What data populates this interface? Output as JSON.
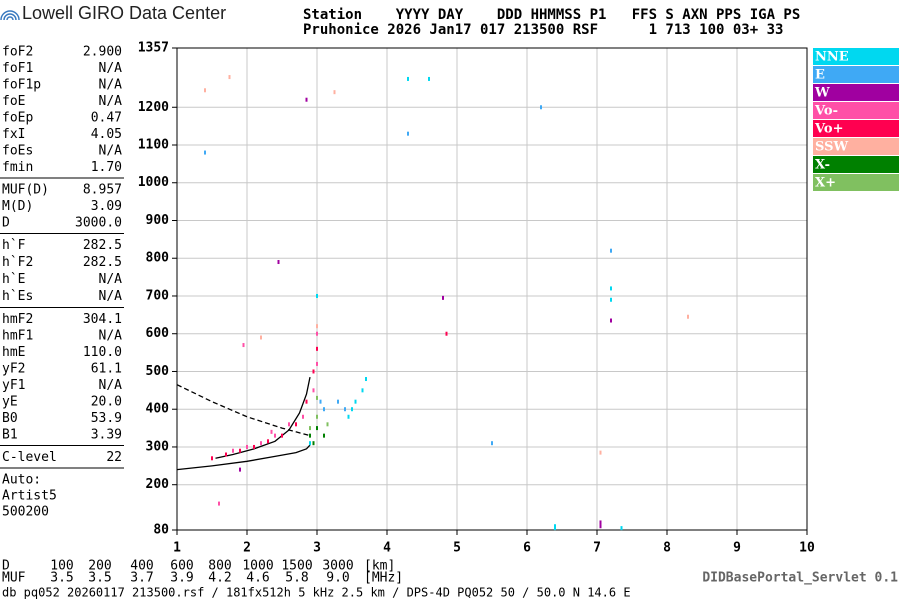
{
  "header": {
    "brand": "Lowell GIRO Data Center",
    "line1": "Station    YYYY DAY    DDD HHMMSS P1   FFS S AXN PPS IGA PS",
    "line2": "Pruhonice 2026 Jan17 017 213500 RSF      1 713 100 03+ 33"
  },
  "params": [
    [
      [
        "foF2",
        "2.900"
      ],
      [
        "foF1",
        "N/A"
      ],
      [
        "foF1p",
        "N/A"
      ],
      [
        "foE",
        "N/A"
      ],
      [
        "foEp",
        "0.47"
      ],
      [
        "fxI",
        "4.05"
      ],
      [
        "foEs",
        "N/A"
      ],
      [
        "fmin",
        "1.70"
      ]
    ],
    [
      [
        "MUF(D)",
        "8.957"
      ],
      [
        "M(D)",
        "3.09"
      ],
      [
        "D",
        "3000.0"
      ]
    ],
    [
      [
        "h`F",
        "282.5"
      ],
      [
        "h`F2",
        "282.5"
      ],
      [
        "h`E",
        "N/A"
      ],
      [
        "h`Es",
        "N/A"
      ]
    ],
    [
      [
        "hmF2",
        "304.1"
      ],
      [
        "hmF1",
        "N/A"
      ],
      [
        "hmE",
        "110.0"
      ],
      [
        "yF2",
        "61.1"
      ],
      [
        "yF1",
        "N/A"
      ],
      [
        "yE",
        "20.0"
      ],
      [
        "B0",
        "53.9"
      ],
      [
        "B1",
        "3.39"
      ]
    ],
    [
      [
        "C-level",
        "22"
      ]
    ]
  ],
  "auto": [
    "Auto:",
    "Artist5",
    "500200"
  ],
  "distance": {
    "label": "D",
    "values": [
      "100",
      "200",
      "400",
      "600",
      "800",
      "1000",
      "1500",
      "3000"
    ],
    "unit": "[km]"
  },
  "muf": {
    "label": "MUF",
    "values": [
      "3.5",
      "3.5",
      "3.7",
      "3.9",
      "4.2",
      "4.6",
      "5.8",
      "9.0"
    ],
    "unit": "[MHz]"
  },
  "footer": "db pq052 20260117 213500.rsf / 181fx512h 5 kHz 2.5 km / DPS-4D PQ052 50 / 50.0 N 14.6 E",
  "servlet": "DIDBasePortal_Servlet 0.1",
  "chart_data": {
    "type": "scatter",
    "grid": true,
    "xlim": [
      1,
      10
    ],
    "xticks": [
      1,
      2,
      3,
      4,
      5,
      6,
      7,
      8,
      9,
      10
    ],
    "ylim": [
      80,
      1357
    ],
    "yticks": [
      80,
      200,
      300,
      400,
      500,
      600,
      700,
      800,
      900,
      1000,
      1100,
      1200,
      1357
    ],
    "series": [
      {
        "name": "NNE",
        "color": "#00d8f0",
        "x": [
          3.45,
          3.5,
          3.55,
          3.65,
          3.7,
          7.2,
          7.2,
          6.4,
          6.4,
          7.35,
          4.3,
          4.6,
          3.0,
          2.9
        ],
        "y": [
          380,
          400,
          420,
          450,
          480,
          690,
          720,
          90,
          85,
          85,
          1275,
          1275,
          700,
          310
        ]
      },
      {
        "name": "E",
        "color": "#3fa9f5",
        "x": [
          3.05,
          3.1,
          3.3,
          4.3,
          6.2,
          5.5,
          7.2,
          1.4,
          3.4
        ],
        "y": [
          420,
          400,
          420,
          1130,
          1200,
          310,
          820,
          1080,
          400
        ]
      },
      {
        "name": "W",
        "color": "#a000a0",
        "x": [
          2.85,
          2.45,
          4.8,
          7.2,
          7.05,
          7.05,
          1.9
        ],
        "y": [
          1220,
          790,
          695,
          635,
          100,
          90,
          240
        ]
      },
      {
        "name": "Vo-",
        "color": "#ff4fa7",
        "x": [
          1.8,
          2.0,
          2.2,
          2.4,
          2.6,
          2.8,
          2.95,
          3.0,
          3.0,
          1.95,
          1.6,
          2.35
        ],
        "y": [
          290,
          300,
          310,
          330,
          360,
          380,
          450,
          520,
          600,
          570,
          150,
          340
        ]
      },
      {
        "name": "Vo+",
        "color": "#ff0050",
        "x": [
          1.5,
          1.7,
          1.9,
          2.1,
          2.3,
          2.5,
          2.7,
          2.85,
          2.95,
          3.0,
          4.85
        ],
        "y": [
          270,
          280,
          290,
          300,
          315,
          330,
          360,
          420,
          500,
          560,
          600
        ]
      },
      {
        "name": "SSW",
        "color": "#ffb0a0",
        "x": [
          1.4,
          1.75,
          2.2,
          3.25,
          8.3,
          3.0,
          7.05
        ],
        "y": [
          1245,
          1280,
          590,
          1240,
          645,
          620,
          285
        ]
      },
      {
        "name": "X-",
        "color": "#008000",
        "x": [
          2.9,
          2.95,
          3.0,
          3.1
        ],
        "y": [
          330,
          310,
          350,
          330
        ]
      },
      {
        "name": "X+",
        "color": "#80c060",
        "x": [
          2.9,
          3.0,
          3.15,
          3.0
        ],
        "y": [
          350,
          380,
          360,
          430
        ]
      }
    ],
    "traces": [
      {
        "color": "#000000",
        "dashed": false,
        "x": [
          1.55,
          1.8,
          2.1,
          2.4,
          2.6,
          2.75,
          2.85,
          2.9
        ],
        "y": [
          270,
          280,
          295,
          315,
          345,
          390,
          440,
          485
        ]
      },
      {
        "color": "#000000",
        "dashed": false,
        "x": [
          1.0,
          1.5,
          2.0,
          2.4,
          2.7,
          2.85,
          2.9
        ],
        "y": [
          240,
          250,
          262,
          275,
          285,
          295,
          305
        ]
      },
      {
        "color": "#000000",
        "dashed": true,
        "x": [
          1.0,
          1.5,
          2.0,
          2.5,
          2.9
        ],
        "y": [
          465,
          420,
          380,
          350,
          330
        ]
      }
    ]
  }
}
